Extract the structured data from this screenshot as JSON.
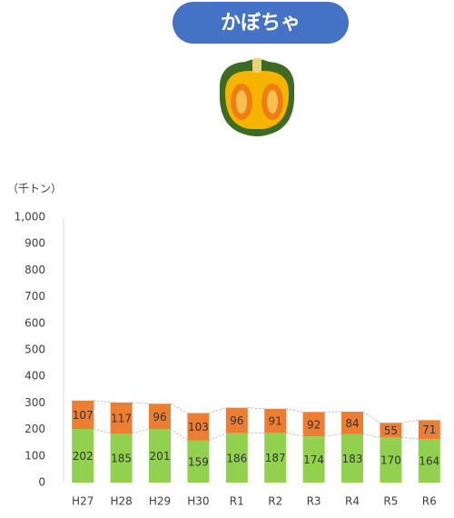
{
  "chart_data": {
    "type": "stacked_bar",
    "title": "かぼちゃ",
    "unit_label": "（千トン）",
    "categories": [
      "H27",
      "H28",
      "H29",
      "H30",
      "R1",
      "R2",
      "R3",
      "R4",
      "R5",
      "R6"
    ],
    "series": [
      {
        "color": "#92d050",
        "values": [
          202,
          185,
          201,
          159,
          186,
          187,
          174,
          183,
          170,
          164
        ]
      },
      {
        "color": "#ed7d31",
        "values": [
          107,
          117,
          96,
          103,
          96,
          91,
          92,
          84,
          55,
          71
        ]
      }
    ],
    "ylim": [
      0,
      1000
    ],
    "yticks": [
      0,
      100,
      200,
      300,
      400,
      500,
      600,
      700,
      800,
      900,
      {
        "value": 1000,
        "label": "1,000"
      }
    ],
    "connector_lines": true
  }
}
